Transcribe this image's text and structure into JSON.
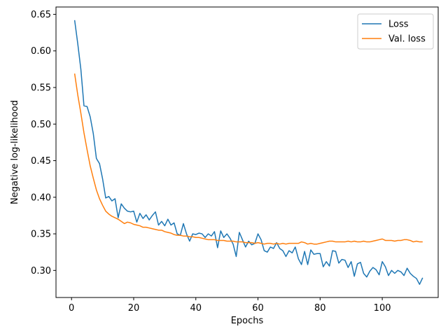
{
  "chart_data": {
    "type": "line",
    "xlabel": "Epochs",
    "ylabel": "Negative log-likelihood",
    "xlim": [
      -5,
      118
    ],
    "ylim": [
      0.263,
      0.66
    ],
    "xticks": [
      0,
      20,
      40,
      60,
      80,
      100
    ],
    "yticks": [
      0.3,
      0.35,
      0.4,
      0.45,
      0.5,
      0.55,
      0.6,
      0.65
    ],
    "ytick_labels": [
      "0.30",
      "0.35",
      "0.40",
      "0.45",
      "0.50",
      "0.55",
      "0.60",
      "0.65"
    ],
    "grid": false,
    "legend_position": "top-right",
    "x_start": 1,
    "series": [
      {
        "name": "Loss",
        "color": "#1f77b4",
        "values": [
          0.642,
          0.61,
          0.575,
          0.525,
          0.524,
          0.51,
          0.487,
          0.453,
          0.446,
          0.425,
          0.399,
          0.401,
          0.395,
          0.398,
          0.372,
          0.391,
          0.385,
          0.381,
          0.38,
          0.381,
          0.366,
          0.378,
          0.371,
          0.376,
          0.369,
          0.375,
          0.38,
          0.362,
          0.367,
          0.361,
          0.37,
          0.362,
          0.365,
          0.35,
          0.348,
          0.364,
          0.35,
          0.34,
          0.35,
          0.349,
          0.351,
          0.35,
          0.345,
          0.35,
          0.347,
          0.353,
          0.331,
          0.354,
          0.345,
          0.35,
          0.344,
          0.336,
          0.319,
          0.352,
          0.342,
          0.332,
          0.34,
          0.335,
          0.337,
          0.35,
          0.342,
          0.327,
          0.325,
          0.332,
          0.33,
          0.338,
          0.33,
          0.327,
          0.319,
          0.327,
          0.324,
          0.332,
          0.316,
          0.308,
          0.326,
          0.308,
          0.328,
          0.322,
          0.323,
          0.323,
          0.305,
          0.312,
          0.306,
          0.327,
          0.326,
          0.31,
          0.315,
          0.314,
          0.304,
          0.312,
          0.292,
          0.309,
          0.311,
          0.296,
          0.291,
          0.299,
          0.304,
          0.301,
          0.294,
          0.312,
          0.305,
          0.293,
          0.3,
          0.296,
          0.3,
          0.298,
          0.293,
          0.303,
          0.296,
          0.292,
          0.289,
          0.281,
          0.29
        ]
      },
      {
        "name": "Val. loss",
        "color": "#ff7f0e",
        "values": [
          0.569,
          0.54,
          0.515,
          0.488,
          0.465,
          0.443,
          0.426,
          0.41,
          0.398,
          0.389,
          0.381,
          0.377,
          0.374,
          0.372,
          0.37,
          0.367,
          0.364,
          0.366,
          0.365,
          0.363,
          0.362,
          0.361,
          0.359,
          0.359,
          0.358,
          0.357,
          0.356,
          0.355,
          0.355,
          0.353,
          0.352,
          0.351,
          0.349,
          0.348,
          0.348,
          0.347,
          0.347,
          0.346,
          0.346,
          0.345,
          0.345,
          0.344,
          0.343,
          0.342,
          0.342,
          0.342,
          0.341,
          0.341,
          0.341,
          0.34,
          0.34,
          0.34,
          0.339,
          0.339,
          0.339,
          0.338,
          0.338,
          0.338,
          0.337,
          0.338,
          0.337,
          0.336,
          0.337,
          0.337,
          0.336,
          0.337,
          0.336,
          0.337,
          0.336,
          0.337,
          0.337,
          0.337,
          0.337,
          0.339,
          0.338,
          0.336,
          0.337,
          0.336,
          0.336,
          0.337,
          0.338,
          0.339,
          0.34,
          0.34,
          0.339,
          0.339,
          0.339,
          0.339,
          0.34,
          0.339,
          0.34,
          0.339,
          0.339,
          0.34,
          0.339,
          0.339,
          0.34,
          0.341,
          0.342,
          0.343,
          0.341,
          0.341,
          0.341,
          0.34,
          0.341,
          0.341,
          0.342,
          0.342,
          0.341,
          0.339,
          0.34,
          0.339,
          0.339
        ]
      }
    ]
  }
}
